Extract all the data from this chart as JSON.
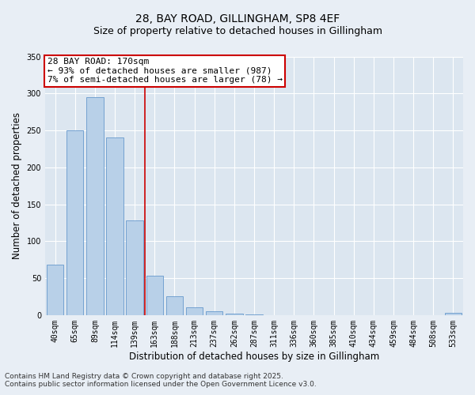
{
  "title_line1": "28, BAY ROAD, GILLINGHAM, SP8 4EF",
  "title_line2": "Size of property relative to detached houses in Gillingham",
  "xlabel": "Distribution of detached houses by size in Gillingham",
  "ylabel": "Number of detached properties",
  "categories": [
    "40sqm",
    "65sqm",
    "89sqm",
    "114sqm",
    "139sqm",
    "163sqm",
    "188sqm",
    "213sqm",
    "237sqm",
    "262sqm",
    "287sqm",
    "311sqm",
    "336sqm",
    "360sqm",
    "385sqm",
    "410sqm",
    "434sqm",
    "459sqm",
    "484sqm",
    "508sqm",
    "533sqm"
  ],
  "values": [
    68,
    250,
    295,
    240,
    128,
    53,
    25,
    10,
    5,
    2,
    1,
    0,
    0,
    0,
    0,
    0,
    0,
    0,
    0,
    0,
    3
  ],
  "bar_color": "#b8d0e8",
  "bar_edge_color": "#6699cc",
  "reference_line_index": 5,
  "reference_line_color": "#cc0000",
  "annotation_text": "28 BAY ROAD: 170sqm\n← 93% of detached houses are smaller (987)\n7% of semi-detached houses are larger (78) →",
  "annotation_box_color": "#cc0000",
  "ylim": [
    0,
    350
  ],
  "yticks": [
    0,
    50,
    100,
    150,
    200,
    250,
    300,
    350
  ],
  "background_color": "#e8eef5",
  "plot_bg_color": "#dce6f0",
  "grid_color": "#ffffff",
  "footer_line1": "Contains HM Land Registry data © Crown copyright and database right 2025.",
  "footer_line2": "Contains public sector information licensed under the Open Government Licence v3.0.",
  "title_fontsize": 10,
  "subtitle_fontsize": 9,
  "axis_label_fontsize": 8.5,
  "tick_fontsize": 7,
  "annotation_fontsize": 8,
  "footer_fontsize": 6.5
}
